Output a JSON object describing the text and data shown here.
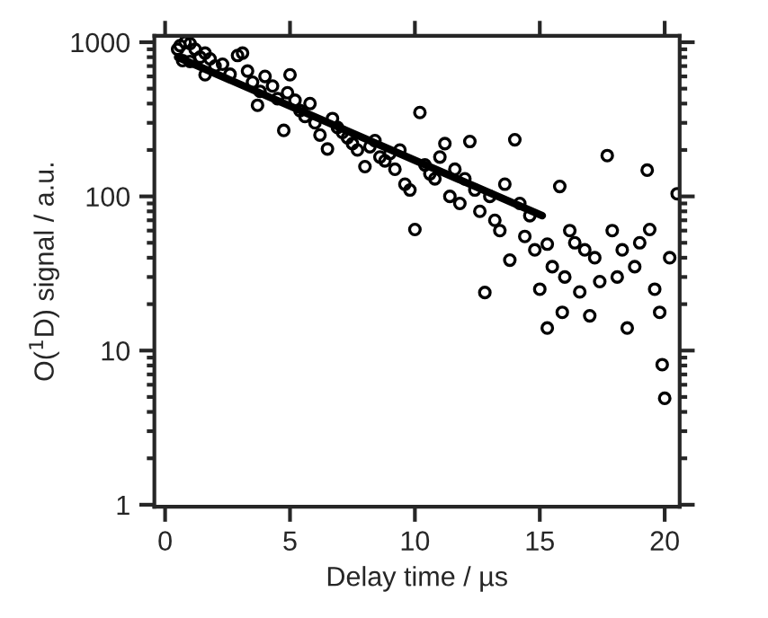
{
  "chart_data": {
    "type": "scatter",
    "xlabel": "Delay time / µs",
    "ylabel": "O($^{1}$D) signal / a.u.",
    "xlim": [
      -0.43,
      20.6
    ],
    "xticks": [
      0,
      5,
      10,
      15,
      20
    ],
    "ylim": [
      0.97,
      1100
    ],
    "yticks": [
      1,
      10,
      100,
      1000
    ],
    "log": "y",
    "grid": false,
    "legend": false,
    "series": [
      {
        "marker": "circle",
        "color": "#000000",
        "x": [
          0.5,
          0.6,
          0.8,
          1.0,
          1.2,
          0.7,
          1.0,
          1.4,
          1.6,
          1.8,
          2.0,
          2.3,
          2.6,
          2.9,
          3.1,
          3.3,
          1.6,
          3.5,
          3.7,
          3.8,
          4.0,
          4.3,
          4.5,
          4.75,
          4.9,
          5.0,
          5.2,
          5.4,
          5.6,
          5.8,
          6.0,
          6.2,
          6.5,
          6.7,
          6.9,
          7.1,
          7.3,
          7.5,
          7.7,
          8.0,
          8.2,
          8.4,
          8.6,
          8.8,
          9.0,
          9.2,
          9.4,
          9.6,
          9.8,
          10.0,
          10.2,
          10.4,
          10.6,
          10.8,
          11.0,
          11.2,
          11.4,
          11.6,
          11.8,
          12.0,
          12.2,
          12.4,
          12.6,
          12.8,
          13.0,
          13.2,
          13.4,
          13.6,
          13.8,
          14.0,
          14.2,
          14.4,
          14.6,
          14.8,
          15.0,
          15.3,
          15.3,
          15.5,
          15.8,
          15.9,
          16.0,
          16.2,
          16.4,
          16.6,
          16.8,
          17.0,
          17.2,
          17.4,
          17.7,
          17.9,
          18.1,
          18.3,
          18.5,
          18.8,
          19.0,
          19.3,
          19.4,
          19.6,
          19.8,
          19.9,
          20.0,
          20.2,
          20.5
        ],
        "values": [
          900,
          950,
          1000,
          980,
          900,
          760,
          750,
          800,
          850,
          780,
          700,
          720,
          620,
          820,
          850,
          650,
          615,
          550,
          390,
          480,
          600,
          520,
          430,
          268,
          470,
          615,
          420,
          360,
          330,
          400,
          300,
          250,
          203,
          320,
          280,
          260,
          240,
          220,
          200,
          156,
          210,
          230,
          180,
          170,
          190,
          150,
          200,
          120,
          110,
          61,
          350,
          160,
          140,
          130,
          180,
          220,
          100,
          150,
          90,
          130,
          227,
          110,
          80,
          23.8,
          100,
          70,
          60,
          120,
          38.6,
          233,
          90,
          55,
          75,
          45,
          25,
          49,
          14,
          35,
          116,
          17.7,
          30,
          60,
          50,
          24,
          45,
          16.8,
          40,
          28,
          184,
          60,
          30,
          45,
          14,
          35,
          50,
          148,
          61,
          25,
          17.7,
          8.1,
          4.9,
          40,
          104
        ]
      },
      {
        "type": "line",
        "color": "#000000",
        "x": [
          0.5,
          15.1
        ],
        "values": [
          800,
          75
        ]
      }
    ]
  }
}
